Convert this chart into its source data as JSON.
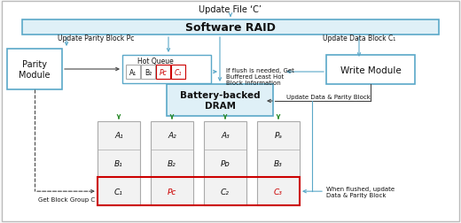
{
  "title_top": "Update File ‘C’",
  "software_raid_label": "Software RAID",
  "parity_module_label": "Parity\nModule",
  "write_module_label": "Write Module",
  "dram_label": "Battery-backed\nDRAM",
  "hot_queue_label": "Hot Queue",
  "hot_queue_items": [
    "A₁",
    "B₂",
    "Pᴄ",
    "C₁"
  ],
  "hot_queue_red_indices": [
    2,
    3
  ],
  "update_parity_label": "Update Parity Block Pᴄ",
  "update_data_label": "Update Data Block C₁",
  "flush_label": "If flush is needed, Get\nBuffered Least Hot\nBlock Information",
  "update_dp_label": "Update Data & Parity Block",
  "get_block_label": "Get Block Group C",
  "when_flushed_label": "When flushed, update\nData & Parity Block",
  "ssd_data": [
    [
      "A₁",
      "A₂",
      "A₃",
      "Pₐ"
    ],
    [
      "B₁",
      "B₂",
      "Pᴅ",
      "B₃"
    ],
    [
      "C₁",
      "Pᴄ",
      "C₂",
      "C₃"
    ]
  ],
  "ssd_red_row": 2,
  "ssd_red_text_cols": [
    1,
    3
  ],
  "bg_color": "#f8f8f8",
  "box_facecolor": "#ffffff",
  "raid_box_color": "#dff0f7",
  "dram_box_color": "#dff0f7",
  "border_color": "#5aa8c8",
  "red_color": "#cc0000",
  "green_color": "#2a8a2a",
  "arrow_color": "#5aa8c8",
  "dark_arrow": "#444444",
  "text_color": "#111111"
}
